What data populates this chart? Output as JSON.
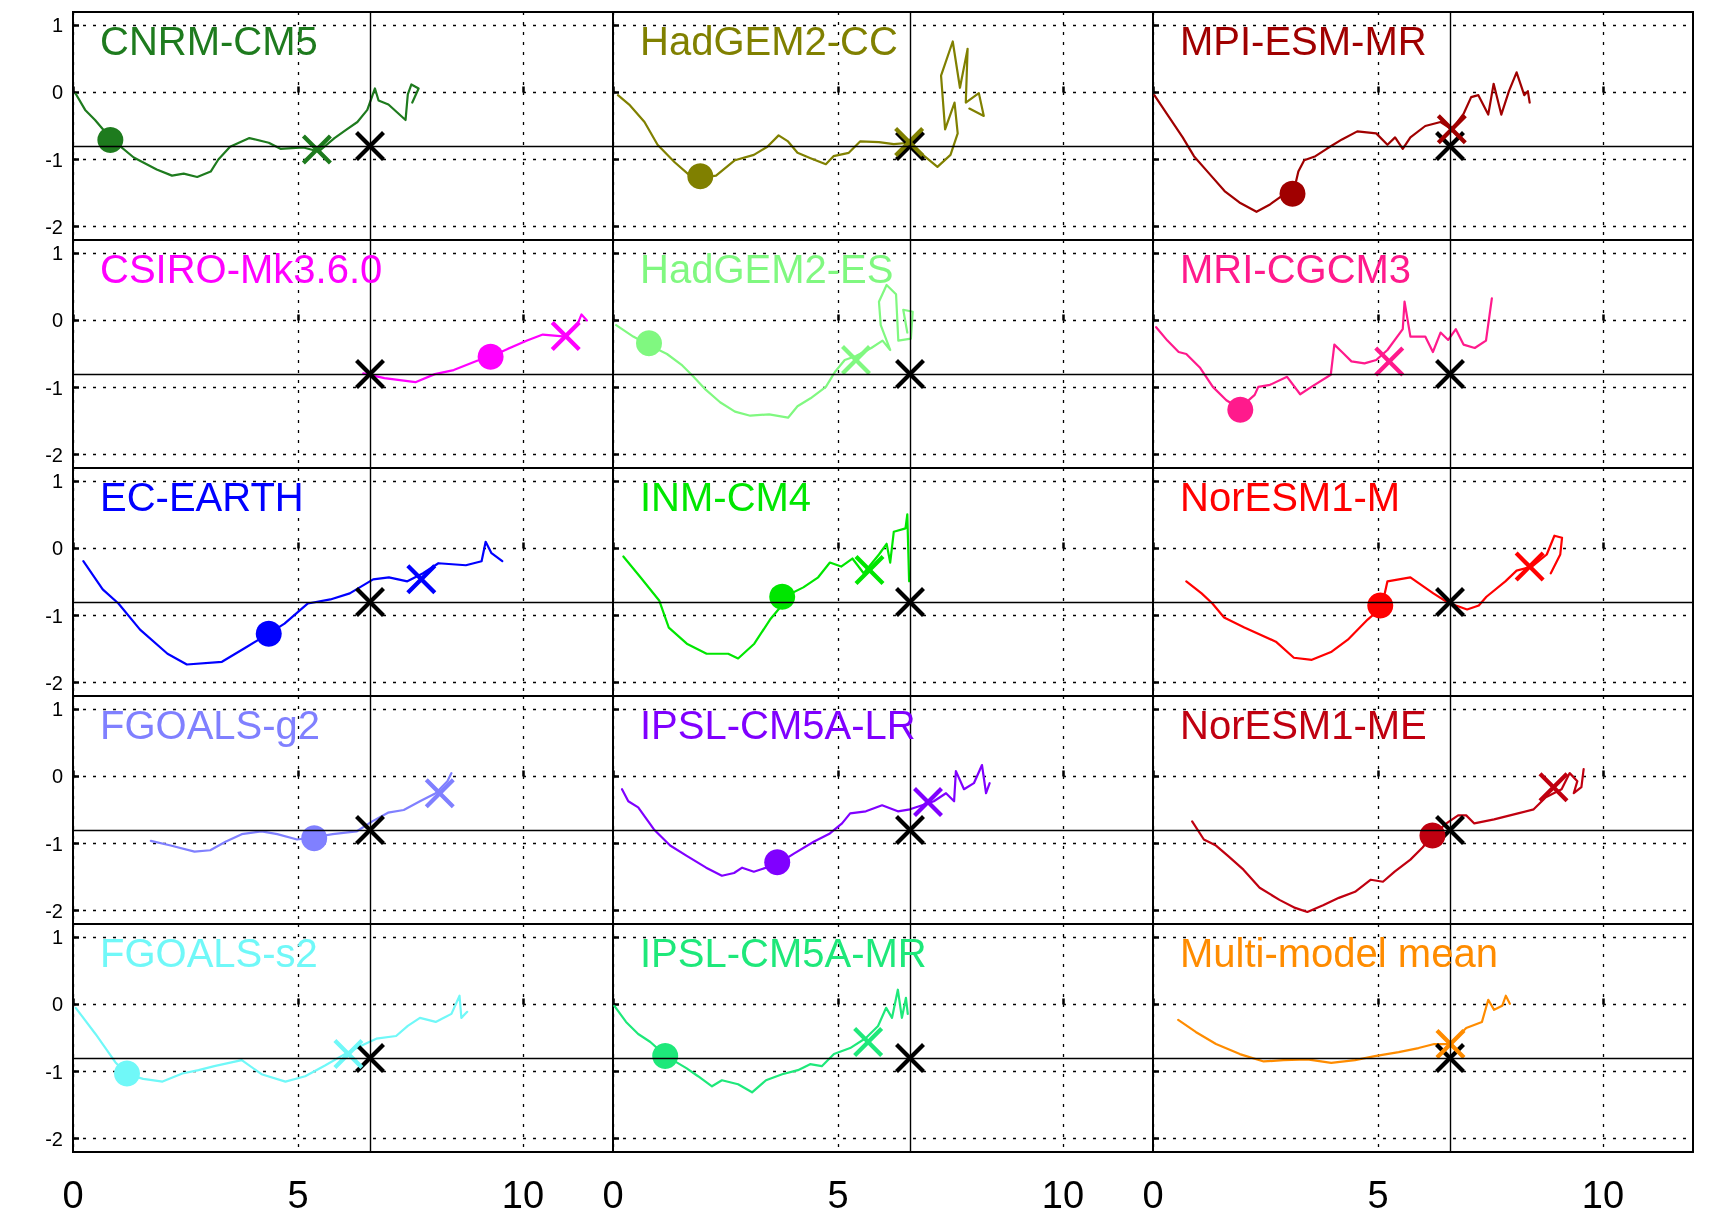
{
  "chart_data": [
    {
      "type": "line",
      "title": "CNRM-CM5",
      "xlim": [
        0,
        12
      ],
      "ylim": [
        -2.2,
        1.2
      ],
      "xticks": [
        0,
        5,
        10
      ],
      "yticks": [
        -2,
        -1,
        0,
        1
      ],
      "grid": true,
      "tick_labels": "y",
      "ref_lines": [
        {
          "axis": "x",
          "value": 6.6
        },
        {
          "axis": "y",
          "value": -0.8
        }
      ],
      "series": [
        {
          "color": "#1e7b1e",
          "marker": "none",
          "x": [
            0.06,
            0.27,
            0.49,
            0.83,
            1.35,
            1.86,
            2.2,
            2.46,
            2.76,
            3.06,
            3.23,
            3.49,
            3.92,
            4.35,
            4.61,
            5.12,
            5.46,
            5.81,
            6.06,
            6.32,
            6.54,
            6.71,
            6.79,
            7.01,
            7.39,
            7.44,
            7.52,
            7.68,
            7.54
          ],
          "values": [
            -0.02,
            -0.26,
            -0.41,
            -0.68,
            -0.97,
            -1.15,
            -1.24,
            -1.21,
            -1.26,
            -1.18,
            -1.0,
            -0.81,
            -0.68,
            -0.75,
            -0.84,
            -0.82,
            -0.88,
            -0.68,
            -0.56,
            -0.44,
            -0.26,
            0.06,
            -0.12,
            -0.18,
            -0.41,
            -0.03,
            0.12,
            0.06,
            -0.15
          ]
        },
        {
          "type": "scatter",
          "color": "#1e7b1e",
          "marker": "circle",
          "x": [
            0.83
          ],
          "values": [
            -0.71
          ]
        },
        {
          "type": "scatter",
          "color": "#1e7b1e",
          "marker": "cross",
          "x": [
            5.42
          ],
          "values": [
            -0.85
          ]
        },
        {
          "type": "scatter",
          "color": "#000000",
          "marker": "cross",
          "x": [
            6.6
          ],
          "values": [
            -0.8
          ]
        }
      ]
    },
    {
      "type": "line",
      "title": "CSIRO-Mk3.6.0",
      "xlim": [
        0,
        12
      ],
      "ylim": [
        -2.2,
        1.2
      ],
      "xticks": [
        0,
        5,
        10
      ],
      "yticks": [
        -2,
        -1,
        0,
        1
      ],
      "grid": true,
      "tick_labels": "y",
      "ref_lines": [
        {
          "axis": "x",
          "value": 6.6
        },
        {
          "axis": "y",
          "value": -0.8
        }
      ],
      "series": [
        {
          "color": "#ff00ff",
          "marker": "none",
          "x": [
            6.45,
            6.92,
            7.61,
            8.04,
            8.46,
            8.98,
            9.28,
            9.67,
            10.09,
            10.44,
            10.95,
            11.21,
            11.3,
            11.42
          ],
          "values": [
            -0.79,
            -0.86,
            -0.92,
            -0.8,
            -0.74,
            -0.6,
            -0.54,
            -0.42,
            -0.3,
            -0.21,
            -0.24,
            -0.06,
            0.09,
            0.0
          ]
        },
        {
          "type": "scatter",
          "color": "#000000",
          "marker": "cross",
          "x": [
            6.6
          ],
          "values": [
            -0.8
          ]
        },
        {
          "type": "scatter",
          "color": "#ff00ff",
          "marker": "circle",
          "x": [
            9.28
          ],
          "values": [
            -0.54
          ]
        },
        {
          "type": "scatter",
          "color": "#ff00ff",
          "marker": "cross",
          "x": [
            10.95
          ],
          "values": [
            -0.23
          ]
        }
      ]
    },
    {
      "type": "line",
      "title": "EC-EARTH",
      "xlim": [
        0,
        12
      ],
      "ylim": [
        -2.2,
        1.2
      ],
      "xticks": [
        0,
        5,
        10
      ],
      "yticks": [
        -2,
        -1,
        0,
        1
      ],
      "grid": true,
      "tick_labels": "y",
      "ref_lines": [
        {
          "axis": "x",
          "value": 6.6
        },
        {
          "axis": "y",
          "value": -0.8
        }
      ],
      "series": [
        {
          "color": "#0000ff",
          "marker": "none",
          "x": [
            0.23,
            0.66,
            1.01,
            1.49,
            2.1,
            2.53,
            3.31,
            3.83,
            4.35,
            4.7,
            5.22,
            5.72,
            6.15,
            6.67,
            7.02,
            7.43,
            7.78,
            8.12,
            8.73,
            9.08,
            9.17,
            9.3,
            9.54
          ],
          "values": [
            -0.19,
            -0.61,
            -0.82,
            -1.21,
            -1.57,
            -1.73,
            -1.69,
            -1.48,
            -1.27,
            -1.12,
            -0.82,
            -0.76,
            -0.67,
            -0.46,
            -0.43,
            -0.49,
            -0.37,
            -0.22,
            -0.25,
            -0.19,
            0.1,
            -0.07,
            -0.19
          ]
        },
        {
          "type": "scatter",
          "color": "#0000ff",
          "marker": "circle",
          "x": [
            4.35
          ],
          "values": [
            -1.27
          ]
        },
        {
          "type": "scatter",
          "color": "#000000",
          "marker": "cross",
          "x": [
            6.6
          ],
          "values": [
            -0.8
          ]
        },
        {
          "type": "scatter",
          "color": "#0000ff",
          "marker": "cross",
          "x": [
            7.74
          ],
          "values": [
            -0.46
          ]
        }
      ]
    },
    {
      "type": "line",
      "title": "FGOALS-g2",
      "xlim": [
        0,
        12
      ],
      "ylim": [
        -2.2,
        1.2
      ],
      "xticks": [
        0,
        5,
        10
      ],
      "yticks": [
        -2,
        -1,
        0,
        1
      ],
      "grid": true,
      "tick_labels": "y",
      "ref_lines": [
        {
          "axis": "x",
          "value": 6.6
        },
        {
          "axis": "y",
          "value": -0.8
        }
      ],
      "series": [
        {
          "color": "#8080ff",
          "marker": "none",
          "x": [
            1.73,
            2.17,
            2.7,
            3.05,
            3.4,
            3.75,
            4.19,
            4.54,
            4.98,
            5.33,
            5.77,
            6.3,
            6.65,
            7.0,
            7.35,
            7.71,
            8.06,
            8.32,
            8.41
          ],
          "values": [
            -0.96,
            -1.03,
            -1.12,
            -1.1,
            -0.97,
            -0.86,
            -0.82,
            -0.86,
            -0.94,
            -0.91,
            -0.86,
            -0.82,
            -0.67,
            -0.54,
            -0.5,
            -0.37,
            -0.25,
            -0.07,
            0.05
          ]
        },
        {
          "type": "scatter",
          "color": "#8080ff",
          "marker": "circle",
          "x": [
            5.36
          ],
          "values": [
            -0.92
          ]
        },
        {
          "type": "scatter",
          "color": "#000000",
          "marker": "cross",
          "x": [
            6.6
          ],
          "values": [
            -0.8
          ]
        },
        {
          "type": "scatter",
          "color": "#8080ff",
          "marker": "cross",
          "x": [
            8.15
          ],
          "values": [
            -0.25
          ]
        }
      ]
    },
    {
      "type": "line",
      "title": "FGOALS-s2",
      "xlim": [
        0,
        12
      ],
      "ylim": [
        -2.2,
        1.2
      ],
      "xticks": [
        0,
        5,
        10
      ],
      "yticks": [
        -2,
        -1,
        0,
        1
      ],
      "grid": true,
      "ref_lines": [
        {
          "axis": "x",
          "value": 6.6
        },
        {
          "axis": "y",
          "value": -0.8
        }
      ],
      "series": [
        {
          "color": "#70f8f8",
          "marker": "none",
          "x": [
            0.06,
            0.5,
            0.94,
            1.2,
            1.56,
            1.99,
            2.43,
            2.79,
            3.14,
            3.75,
            4.19,
            4.72,
            5.16,
            5.6,
            6.04,
            6.39,
            6.74,
            7.18,
            7.44,
            7.71,
            8.06,
            8.41,
            8.59,
            8.63,
            8.76
          ],
          "values": [
            -0.05,
            -0.44,
            -0.86,
            -1.04,
            -1.11,
            -1.15,
            -1.03,
            -0.98,
            -0.92,
            -0.83,
            -1.04,
            -1.15,
            -1.07,
            -0.91,
            -0.74,
            -0.62,
            -0.51,
            -0.47,
            -0.32,
            -0.2,
            -0.26,
            -0.14,
            0.13,
            -0.2,
            -0.11
          ]
        },
        {
          "type": "scatter",
          "color": "#70f8f8",
          "marker": "circle",
          "x": [
            1.2
          ],
          "values": [
            -1.03
          ]
        },
        {
          "type": "scatter",
          "color": "#000000",
          "marker": "cross",
          "x": [
            6.6
          ],
          "values": [
            -0.8
          ]
        },
        {
          "type": "scatter",
          "color": "#70f8f8",
          "marker": "cross",
          "x": [
            6.12
          ],
          "values": [
            -0.74
          ]
        }
      ]
    },
    {
      "type": "line",
      "title": "HadGEM2-CC",
      "xlim": [
        0,
        12
      ],
      "ylim": [
        -2.2,
        1.2
      ],
      "xticks": [
        0,
        5,
        10
      ],
      "yticks": [
        -2,
        -1,
        0,
        1
      ],
      "grid": true,
      "tick_labels": false,
      "ref_lines": [
        {
          "axis": "x",
          "value": 6.6
        },
        {
          "axis": "y",
          "value": -0.8
        }
      ],
      "series": [
        {
          "color": "#808000",
          "marker": "none",
          "x": [
            0.11,
            0.36,
            0.7,
            0.99,
            1.37,
            1.71,
            1.96,
            2.29,
            2.71,
            3.13,
            3.43,
            3.68,
            3.89,
            4.1,
            4.39,
            4.73,
            4.9,
            5.24,
            5.49,
            5.91,
            6.24,
            6.58,
            6.92,
            7.21,
            7.5,
            7.66,
            7.59,
            7.38,
            7.29,
            7.55,
            7.71,
            7.88,
            7.84,
            8.13,
            8.24,
            7.92
          ],
          "values": [
            -0.04,
            -0.18,
            -0.44,
            -0.78,
            -1.04,
            -1.24,
            -1.27,
            -1.24,
            -1.01,
            -0.93,
            -0.81,
            -0.64,
            -0.73,
            -0.9,
            -0.98,
            -1.07,
            -0.95,
            -0.9,
            -0.73,
            -0.74,
            -0.77,
            -0.75,
            -0.95,
            -1.11,
            -0.93,
            -0.61,
            -0.15,
            -0.55,
            0.25,
            0.76,
            0.07,
            0.65,
            -0.15,
            -0.01,
            -0.35,
            -0.24
          ]
        },
        {
          "type": "scatter",
          "color": "#808000",
          "marker": "circle",
          "x": [
            1.94
          ],
          "values": [
            -1.25
          ]
        },
        {
          "type": "scatter",
          "color": "#000000",
          "marker": "cross",
          "x": [
            6.6
          ],
          "values": [
            -0.8
          ]
        },
        {
          "type": "scatter",
          "color": "#808000",
          "marker": "cross",
          "x": [
            6.58
          ],
          "values": [
            -0.74
          ]
        }
      ]
    },
    {
      "type": "line",
      "title": "HadGEM2-ES",
      "xlim": [
        0,
        12
      ],
      "ylim": [
        -2.2,
        1.2
      ],
      "xticks": [
        0,
        5,
        10
      ],
      "yticks": [
        -2,
        -1,
        0,
        1
      ],
      "grid": true,
      "tick_labels": false,
      "ref_lines": [
        {
          "axis": "x",
          "value": 6.6
        },
        {
          "axis": "y",
          "value": -0.8
        }
      ],
      "series": [
        {
          "color": "#80f880",
          "marker": "none",
          "x": [
            0.07,
            0.45,
            0.78,
            1.2,
            1.54,
            1.79,
            2.04,
            2.38,
            2.71,
            3.05,
            3.47,
            3.89,
            4.1,
            4.39,
            4.73,
            4.94,
            5.15,
            5.4,
            5.74,
            5.99,
            6.16,
            5.95,
            5.91,
            6.08,
            6.29,
            6.34,
            6.62,
            6.66,
            6.45,
            6.54
          ],
          "values": [
            -0.07,
            -0.24,
            -0.36,
            -0.5,
            -0.67,
            -0.84,
            -1.02,
            -1.22,
            -1.36,
            -1.42,
            -1.4,
            -1.45,
            -1.28,
            -1.16,
            -0.99,
            -0.76,
            -0.59,
            -0.53,
            -0.41,
            -0.3,
            -0.44,
            -0.07,
            0.28,
            0.53,
            0.39,
            -0.3,
            -0.27,
            0.13,
            0.16,
            -0.18
          ]
        },
        {
          "type": "scatter",
          "color": "#80f880",
          "marker": "circle",
          "x": [
            0.8
          ],
          "values": [
            -0.34
          ]
        },
        {
          "type": "scatter",
          "color": "#80f880",
          "marker": "cross",
          "x": [
            5.4
          ],
          "values": [
            -0.59
          ]
        },
        {
          "type": "scatter",
          "color": "#000000",
          "marker": "cross",
          "x": [
            6.6
          ],
          "values": [
            -0.8
          ]
        }
      ]
    },
    {
      "type": "line",
      "title": "INM-CM4",
      "xlim": [
        0,
        12
      ],
      "ylim": [
        -2.2,
        1.2
      ],
      "xticks": [
        0,
        5,
        10
      ],
      "yticks": [
        -2,
        -1,
        0,
        1
      ],
      "grid": true,
      "tick_labels": false,
      "ref_lines": [
        {
          "axis": "x",
          "value": 6.6
        },
        {
          "axis": "y",
          "value": -0.8
        }
      ],
      "series": [
        {
          "color": "#00e600",
          "marker": "none",
          "x": [
            0.23,
            0.61,
            1.03,
            1.24,
            1.64,
            2.08,
            2.56,
            2.78,
            3.14,
            3.49,
            3.75,
            3.81,
            4.23,
            4.56,
            4.82,
            5.07,
            5.32,
            5.57,
            5.91,
            6.08,
            6.16,
            6.24,
            6.5,
            6.54,
            6.58
          ],
          "values": [
            -0.12,
            -0.43,
            -0.78,
            -1.18,
            -1.42,
            -1.57,
            -1.57,
            -1.64,
            -1.42,
            -1.06,
            -0.85,
            -0.72,
            -0.58,
            -0.43,
            -0.21,
            -0.27,
            -0.15,
            -0.37,
            -0.09,
            0.07,
            -0.21,
            0.25,
            0.3,
            0.51,
            -0.49
          ]
        },
        {
          "type": "scatter",
          "color": "#00e600",
          "marker": "circle",
          "x": [
            3.76
          ],
          "values": [
            -0.72
          ]
        },
        {
          "type": "scatter",
          "color": "#00e600",
          "marker": "cross",
          "x": [
            5.7
          ],
          "values": [
            -0.32
          ]
        },
        {
          "type": "scatter",
          "color": "#000000",
          "marker": "cross",
          "x": [
            6.6
          ],
          "values": [
            -0.8
          ]
        }
      ]
    },
    {
      "type": "line",
      "title": "IPSL-CM5A-LR",
      "xlim": [
        0,
        12
      ],
      "ylim": [
        -2.2,
        1.2
      ],
      "xticks": [
        0,
        5,
        10
      ],
      "yticks": [
        -2,
        -1,
        0,
        1
      ],
      "grid": true,
      "tick_labels": false,
      "ref_lines": [
        {
          "axis": "x",
          "value": 6.6
        },
        {
          "axis": "y",
          "value": -0.8
        }
      ],
      "series": [
        {
          "color": "#8000ff",
          "marker": "none",
          "x": [
            0.2,
            0.34,
            0.56,
            0.91,
            1.27,
            1.63,
            2.07,
            2.42,
            2.69,
            2.87,
            3.13,
            3.4,
            3.67,
            4.02,
            4.47,
            4.82,
            5.09,
            5.27,
            5.62,
            5.98,
            6.33,
            6.6,
            6.87,
            7.13,
            7.4,
            7.58,
            7.62,
            7.8,
            8.02,
            8.2,
            8.29,
            8.37
          ],
          "values": [
            -0.19,
            -0.37,
            -0.46,
            -0.79,
            -1.03,
            -1.18,
            -1.36,
            -1.48,
            -1.44,
            -1.36,
            -1.42,
            -1.36,
            -1.3,
            -1.15,
            -0.97,
            -0.85,
            -0.7,
            -0.55,
            -0.52,
            -0.43,
            -0.52,
            -0.49,
            -0.43,
            -0.37,
            -0.25,
            -0.37,
            0.08,
            -0.19,
            -0.1,
            0.17,
            -0.25,
            -0.1
          ]
        },
        {
          "type": "scatter",
          "color": "#8000ff",
          "marker": "circle",
          "x": [
            3.65
          ],
          "values": [
            -1.28
          ]
        },
        {
          "type": "scatter",
          "color": "#000000",
          "marker": "cross",
          "x": [
            6.6
          ],
          "values": [
            -0.8
          ]
        },
        {
          "type": "scatter",
          "color": "#8000ff",
          "marker": "cross",
          "x": [
            7.0
          ],
          "values": [
            -0.38
          ]
        }
      ]
    },
    {
      "type": "line",
      "title": "IPSL-CM5A-MR",
      "xlim": [
        0,
        12
      ],
      "ylim": [
        -2.2,
        1.2
      ],
      "xticks": [
        0,
        5,
        10
      ],
      "yticks": [
        -2,
        -1,
        0,
        1
      ],
      "grid": true,
      "tick_labels": "x",
      "ref_lines": [
        {
          "axis": "x",
          "value": 6.6
        },
        {
          "axis": "y",
          "value": -0.8
        }
      ],
      "series": [
        {
          "color": "#1ee87a",
          "marker": "none",
          "x": [
            0.03,
            0.29,
            0.56,
            0.83,
            1.18,
            1.63,
            1.89,
            2.2,
            2.42,
            2.78,
            3.09,
            3.4,
            3.76,
            4.11,
            4.38,
            4.64,
            4.91,
            5.27,
            5.62,
            5.89,
            6.07,
            6.2,
            6.33,
            6.42,
            6.51,
            6.55
          ],
          "values": [
            -0.02,
            -0.26,
            -0.44,
            -0.56,
            -0.77,
            -0.95,
            -1.07,
            -1.22,
            -1.13,
            -1.19,
            -1.31,
            -1.13,
            -1.04,
            -0.98,
            -0.89,
            -0.92,
            -0.74,
            -0.65,
            -0.5,
            -0.32,
            -0.05,
            -0.2,
            0.22,
            -0.2,
            0.1,
            -0.14
          ]
        },
        {
          "type": "scatter",
          "color": "#1ee87a",
          "marker": "circle",
          "x": [
            1.16
          ],
          "values": [
            -0.77
          ]
        },
        {
          "type": "scatter",
          "color": "#1ee87a",
          "marker": "cross",
          "x": [
            5.67
          ],
          "values": [
            -0.56
          ]
        },
        {
          "type": "scatter",
          "color": "#000000",
          "marker": "cross",
          "x": [
            6.6
          ],
          "values": [
            -0.8
          ]
        }
      ]
    },
    {
      "type": "line",
      "title": "MPI-ESM-MR",
      "xlim": [
        0,
        12
      ],
      "ylim": [
        -2.2,
        1.2
      ],
      "xticks": [
        0,
        5,
        10
      ],
      "yticks": [
        -2,
        -1,
        0,
        1
      ],
      "grid": true,
      "tick_labels": false,
      "ref_lines": [
        {
          "axis": "x",
          "value": 6.6
        },
        {
          "axis": "y",
          "value": -0.8
        }
      ],
      "series": [
        {
          "color": "#a00000",
          "marker": "none",
          "x": [
            0.03,
            0.32,
            0.66,
            0.91,
            1.25,
            1.59,
            1.92,
            2.3,
            2.6,
            2.85,
            3.15,
            3.23,
            3.36,
            3.61,
            3.86,
            4.2,
            4.54,
            4.96,
            5.21,
            5.38,
            5.55,
            5.72,
            6.05,
            6.39,
            6.64,
            6.9,
            7.07,
            7.23,
            7.45,
            7.57,
            7.74,
            7.91,
            8.08,
            8.25,
            8.33,
            8.37
          ],
          "values": [
            -0.04,
            -0.33,
            -0.67,
            -0.95,
            -1.21,
            -1.47,
            -1.64,
            -1.78,
            -1.67,
            -1.55,
            -1.41,
            -1.18,
            -1.01,
            -0.95,
            -0.84,
            -0.7,
            -0.58,
            -0.61,
            -0.78,
            -0.67,
            -0.84,
            -0.67,
            -0.5,
            -0.44,
            -0.55,
            -0.32,
            -0.07,
            -0.04,
            -0.33,
            0.13,
            -0.33,
            0.02,
            0.3,
            -0.04,
            0.02,
            -0.15
          ]
        },
        {
          "type": "scatter",
          "color": "#a00000",
          "marker": "circle",
          "x": [
            3.1
          ],
          "values": [
            -1.51
          ]
        },
        {
          "type": "scatter",
          "color": "#000000",
          "marker": "cross",
          "x": [
            6.6
          ],
          "values": [
            -0.8
          ]
        },
        {
          "type": "scatter",
          "color": "#a00000",
          "marker": "cross",
          "x": [
            6.64
          ],
          "values": [
            -0.55
          ]
        }
      ]
    },
    {
      "type": "line",
      "title": "MRI-CGCM3",
      "xlim": [
        0,
        12
      ],
      "ylim": [
        -2.2,
        1.2
      ],
      "xticks": [
        0,
        5,
        10
      ],
      "yticks": [
        -2,
        -1,
        0,
        1
      ],
      "grid": true,
      "tick_labels": false,
      "ref_lines": [
        {
          "axis": "x",
          "value": 6.6
        },
        {
          "axis": "y",
          "value": -0.8
        }
      ],
      "series": [
        {
          "color": "#ff1a8c",
          "marker": "none",
          "x": [
            0.07,
            0.32,
            0.57,
            0.74,
            1.04,
            1.33,
            1.63,
            1.92,
            2.26,
            2.34,
            2.6,
            2.98,
            3.27,
            3.52,
            3.95,
            4.03,
            4.2,
            4.41,
            4.7,
            4.96,
            5.21,
            5.55,
            5.59,
            5.72,
            6.05,
            6.22,
            6.39,
            6.56,
            6.73,
            6.9,
            7.15,
            7.4,
            7.53
          ],
          "values": [
            -0.1,
            -0.3,
            -0.47,
            -0.5,
            -0.7,
            -0.99,
            -1.19,
            -1.31,
            -1.11,
            -0.99,
            -0.96,
            -0.84,
            -1.1,
            -0.99,
            -0.81,
            -0.36,
            -0.47,
            -0.61,
            -0.64,
            -0.59,
            -0.44,
            -0.13,
            0.28,
            -0.24,
            -0.24,
            -0.47,
            -0.18,
            -0.29,
            -0.13,
            -0.36,
            -0.41,
            -0.3,
            0.33
          ]
        },
        {
          "type": "scatter",
          "color": "#ff1a8c",
          "marker": "circle",
          "x": [
            1.94
          ],
          "values": [
            -1.33
          ]
        },
        {
          "type": "scatter",
          "color": "#ff1a8c",
          "marker": "cross",
          "x": [
            5.25
          ],
          "values": [
            -0.61
          ]
        },
        {
          "type": "scatter",
          "color": "#000000",
          "marker": "cross",
          "x": [
            6.6
          ],
          "values": [
            -0.8
          ]
        }
      ]
    },
    {
      "type": "line",
      "title": "NorESM1-M",
      "xlim": [
        0,
        12
      ],
      "ylim": [
        -2.2,
        1.2
      ],
      "xticks": [
        0,
        5,
        10
      ],
      "yticks": [
        -2,
        -1,
        0,
        1
      ],
      "grid": true,
      "tick_labels": false,
      "ref_lines": [
        {
          "axis": "x",
          "value": 6.6
        },
        {
          "axis": "y",
          "value": -0.8
        }
      ],
      "series": [
        {
          "color": "#ff0000",
          "marker": "none",
          "x": [
            0.74,
            1.08,
            1.32,
            1.58,
            2.03,
            2.73,
            3.13,
            3.53,
            3.97,
            4.33,
            4.77,
            5.08,
            5.21,
            5.72,
            6.23,
            6.56,
            6.98,
            7.24,
            7.41,
            7.83,
            8.08,
            8.42,
            8.75,
            8.92,
            9.09,
            9.05,
            8.84
          ],
          "values": [
            -0.49,
            -0.67,
            -0.82,
            -1.03,
            -1.18,
            -1.39,
            -1.63,
            -1.66,
            -1.54,
            -1.36,
            -1.06,
            -0.88,
            -0.49,
            -0.43,
            -0.67,
            -0.81,
            -0.91,
            -0.85,
            -0.72,
            -0.49,
            -0.33,
            -0.27,
            -0.09,
            0.19,
            0.16,
            -0.09,
            -0.37
          ]
        },
        {
          "type": "scatter",
          "color": "#ff0000",
          "marker": "circle",
          "x": [
            5.05
          ],
          "values": [
            -0.85
          ]
        },
        {
          "type": "scatter",
          "color": "#000000",
          "marker": "cross",
          "x": [
            6.6
          ],
          "values": [
            -0.8
          ]
        },
        {
          "type": "scatter",
          "color": "#ff0000",
          "marker": "cross",
          "x": [
            8.37
          ],
          "values": [
            -0.27
          ]
        }
      ]
    },
    {
      "type": "line",
      "title": "NorESM1-ME",
      "xlim": [
        0,
        12
      ],
      "ylim": [
        -2.2,
        1.2
      ],
      "xticks": [
        0,
        5,
        10
      ],
      "yticks": [
        -2,
        -1,
        0,
        1
      ],
      "grid": true,
      "tick_labels": false,
      "ref_lines": [
        {
          "axis": "x",
          "value": 6.6
        },
        {
          "axis": "y",
          "value": -0.8
        }
      ],
      "series": [
        {
          "color": "#c00010",
          "marker": "none",
          "x": [
            0.87,
            1.13,
            1.4,
            1.66,
            2.01,
            2.37,
            2.81,
            3.16,
            3.43,
            3.78,
            4.13,
            4.49,
            4.84,
            5.11,
            5.37,
            5.72,
            5.99,
            6.21,
            6.52,
            6.78,
            6.96,
            7.14,
            7.58,
            8.11,
            8.46,
            8.73,
            9.08,
            9.26,
            9.43,
            9.35,
            9.52,
            9.57
          ],
          "values": [
            -0.67,
            -0.94,
            -1.03,
            -1.18,
            -1.39,
            -1.66,
            -1.84,
            -1.96,
            -2.02,
            -1.92,
            -1.81,
            -1.72,
            -1.54,
            -1.57,
            -1.42,
            -1.24,
            -1.06,
            -0.88,
            -0.7,
            -0.58,
            -0.58,
            -0.7,
            -0.64,
            -0.55,
            -0.49,
            -0.31,
            -0.19,
            0.05,
            -0.07,
            -0.25,
            -0.16,
            0.11
          ]
        },
        {
          "type": "scatter",
          "color": "#000000",
          "marker": "cross",
          "x": [
            6.6
          ],
          "values": [
            -0.8
          ]
        },
        {
          "type": "scatter",
          "color": "#c00010",
          "marker": "circle",
          "x": [
            6.21
          ],
          "values": [
            -0.88
          ]
        },
        {
          "type": "scatter",
          "color": "#c00010",
          "marker": "cross",
          "x": [
            8.9
          ],
          "values": [
            -0.16
          ]
        }
      ]
    },
    {
      "type": "line",
      "title": "Multi-model mean",
      "xlim": [
        0,
        12
      ],
      "ylim": [
        -2.2,
        1.2
      ],
      "xticks": [
        0,
        5,
        10
      ],
      "yticks": [
        -2,
        -1,
        0,
        1
      ],
      "grid": true,
      "tick_labels": "x",
      "ref_lines": [
        {
          "axis": "x",
          "value": 6.6
        },
        {
          "axis": "y",
          "value": -0.8
        }
      ],
      "series": [
        {
          "color": "#ff8c00",
          "marker": "none",
          "x": [
            0.56,
            0.95,
            1.4,
            1.93,
            2.46,
            2.9,
            3.43,
            3.96,
            4.49,
            4.93,
            5.46,
            5.9,
            6.25,
            6.61,
            6.96,
            7.31,
            7.45,
            7.58,
            7.76,
            7.84,
            7.93
          ],
          "values": [
            -0.23,
            -0.41,
            -0.59,
            -0.74,
            -0.85,
            -0.83,
            -0.82,
            -0.87,
            -0.83,
            -0.77,
            -0.71,
            -0.65,
            -0.59,
            -0.59,
            -0.35,
            -0.26,
            0.07,
            -0.08,
            -0.02,
            0.13,
            0.01
          ]
        },
        {
          "type": "scatter",
          "color": "#000000",
          "marker": "cross",
          "x": [
            6.6
          ],
          "values": [
            -0.8
          ]
        },
        {
          "type": "scatter",
          "color": "#ff8c00",
          "marker": "cross",
          "x": [
            6.61
          ],
          "values": [
            -0.59
          ]
        }
      ]
    }
  ]
}
